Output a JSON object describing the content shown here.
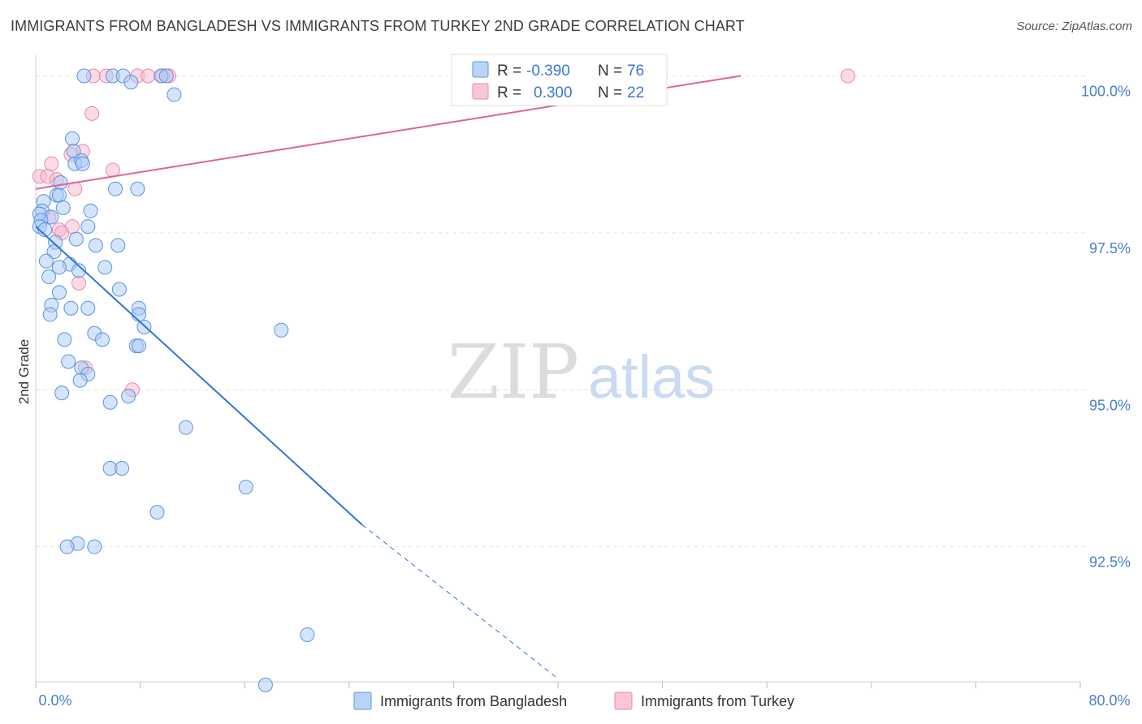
{
  "title": "IMMIGRANTS FROM BANGLADESH VS IMMIGRANTS FROM TURKEY 2ND GRADE CORRELATION CHART",
  "source": "Source: ZipAtlas.com",
  "watermark": {
    "zip": "ZIP",
    "atlas": "atlas"
  },
  "colors": {
    "blue_fill": "#a9c9f5",
    "blue_stroke": "#5b93e0",
    "blue_line": "#2f74d4",
    "pink_fill": "#f7b8cd",
    "pink_stroke": "#e88aab",
    "pink_line": "#e0648f",
    "axis_label": "#4a7fcc",
    "grid": "#e3e3e3"
  },
  "legend_top": {
    "rows": [
      {
        "series": "bangladesh",
        "r_label": "R =",
        "r_value": "-0.390",
        "n_label": "N =",
        "n_value": "76"
      },
      {
        "series": "turkey",
        "r_label": "R =",
        "r_value": "0.300",
        "n_label": "N =",
        "n_value": "22"
      }
    ]
  },
  "chart_data": {
    "type": "scatter",
    "title": "IMMIGRANTS FROM BANGLADESH VS IMMIGRANTS FROM TURKEY 2ND GRADE CORRELATION CHART",
    "xlabel": "",
    "ylabel": "2nd Grade",
    "xlim": [
      0,
      80
    ],
    "ylim": [
      90.35,
      100.2
    ],
    "x_tick_labels": [
      "0.0%",
      "80.0%"
    ],
    "y_ticks": [
      92.5,
      95.0,
      97.5,
      100.0
    ],
    "y_tick_labels": [
      "92.5%",
      "95.0%",
      "97.5%",
      "100.0%"
    ],
    "grid": true,
    "legend_bottom": [
      "Immigrants from Bangladesh",
      "Immigrants from Turkey"
    ],
    "series": [
      {
        "name": "Immigrants from Bangladesh",
        "color": "blue",
        "r": -0.39,
        "n": 76,
        "trend": {
          "x0": 0.0,
          "y0": 97.6,
          "x_solid_end": 25.0,
          "y_solid_end": 92.85,
          "x_dash_end": 40.0,
          "y_dash_end": 90.4
        },
        "points": [
          [
            3.7,
            100.0
          ],
          [
            5.9,
            100.0
          ],
          [
            6.7,
            100.0
          ],
          [
            7.3,
            99.9
          ],
          [
            9.6,
            100.0
          ],
          [
            10.0,
            100.0
          ],
          [
            10.6,
            99.7
          ],
          [
            2.8,
            99.0
          ],
          [
            2.9,
            98.8
          ],
          [
            3.0,
            98.6
          ],
          [
            3.5,
            98.65
          ],
          [
            3.6,
            98.6
          ],
          [
            6.1,
            98.2
          ],
          [
            7.8,
            98.2
          ],
          [
            1.9,
            98.3
          ],
          [
            1.6,
            98.1
          ],
          [
            1.8,
            98.1
          ],
          [
            0.6,
            98.0
          ],
          [
            2.1,
            97.9
          ],
          [
            4.2,
            97.85
          ],
          [
            0.5,
            97.85
          ],
          [
            0.3,
            97.8
          ],
          [
            1.2,
            97.75
          ],
          [
            0.4,
            97.7
          ],
          [
            0.3,
            97.6
          ],
          [
            4.0,
            97.6
          ],
          [
            0.7,
            97.55
          ],
          [
            3.1,
            97.4
          ],
          [
            1.5,
            97.35
          ],
          [
            4.6,
            97.3
          ],
          [
            6.3,
            97.3
          ],
          [
            1.4,
            97.2
          ],
          [
            0.8,
            97.05
          ],
          [
            2.6,
            97.0
          ],
          [
            1.8,
            96.95
          ],
          [
            5.3,
            96.95
          ],
          [
            1.0,
            96.8
          ],
          [
            3.3,
            96.9
          ],
          [
            6.4,
            96.6
          ],
          [
            1.8,
            96.55
          ],
          [
            1.2,
            96.35
          ],
          [
            2.7,
            96.3
          ],
          [
            4.0,
            96.3
          ],
          [
            1.1,
            96.2
          ],
          [
            7.9,
            96.3
          ],
          [
            7.9,
            96.2
          ],
          [
            8.3,
            96.0
          ],
          [
            18.8,
            95.95
          ],
          [
            4.5,
            95.9
          ],
          [
            2.2,
            95.8
          ],
          [
            5.1,
            95.8
          ],
          [
            7.7,
            95.7
          ],
          [
            7.9,
            95.7
          ],
          [
            2.5,
            95.45
          ],
          [
            3.5,
            95.35
          ],
          [
            4.0,
            95.25
          ],
          [
            3.4,
            95.15
          ],
          [
            2.0,
            94.95
          ],
          [
            7.1,
            94.9
          ],
          [
            5.7,
            94.8
          ],
          [
            11.5,
            94.4
          ],
          [
            5.7,
            93.75
          ],
          [
            6.6,
            93.75
          ],
          [
            16.1,
            93.45
          ],
          [
            9.3,
            93.05
          ],
          [
            3.2,
            92.55
          ],
          [
            2.4,
            92.5
          ],
          [
            4.5,
            92.5
          ],
          [
            20.8,
            91.1
          ],
          [
            17.6,
            90.3
          ]
        ]
      },
      {
        "name": "Immigrants from Turkey",
        "color": "pink",
        "r": 0.3,
        "n": 22,
        "trend": {
          "x0": 0.0,
          "y0": 98.2,
          "x1": 54.0,
          "y1": 100.0
        },
        "points": [
          [
            4.4,
            100.0
          ],
          [
            5.4,
            100.0
          ],
          [
            7.8,
            100.0
          ],
          [
            8.6,
            100.0
          ],
          [
            9.7,
            100.0
          ],
          [
            10.2,
            100.0
          ],
          [
            62.2,
            100.0
          ],
          [
            4.3,
            99.4
          ],
          [
            3.6,
            98.8
          ],
          [
            2.7,
            98.75
          ],
          [
            1.2,
            98.6
          ],
          [
            5.9,
            98.5
          ],
          [
            0.3,
            98.4
          ],
          [
            0.9,
            98.4
          ],
          [
            1.6,
            98.35
          ],
          [
            3.0,
            98.2
          ],
          [
            1.0,
            97.75
          ],
          [
            2.8,
            97.6
          ],
          [
            1.8,
            97.55
          ],
          [
            2.0,
            97.5
          ],
          [
            3.3,
            96.7
          ],
          [
            3.8,
            95.35
          ],
          [
            7.4,
            95.0
          ]
        ]
      }
    ]
  }
}
